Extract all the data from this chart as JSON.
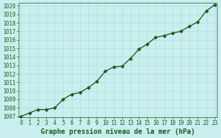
{
  "x": [
    0,
    1,
    2,
    3,
    4,
    5,
    6,
    7,
    8,
    9,
    10,
    11,
    12,
    13,
    14,
    15,
    16,
    17,
    18,
    19,
    20,
    21,
    22,
    23
  ],
  "y": [
    1007.0,
    1007.4,
    1007.8,
    1007.8,
    1008.0,
    1009.0,
    1009.6,
    1009.8,
    1010.4,
    1011.1,
    1012.3,
    1012.8,
    1012.9,
    1013.8,
    1014.9,
    1015.5,
    1016.3,
    1016.5,
    1016.8,
    1017.0,
    1017.6,
    1018.1,
    1019.4,
    1020.1
  ],
  "xlim": [
    0,
    23
  ],
  "ylim": [
    1007,
    1020
  ],
  "xticks": [
    0,
    1,
    2,
    3,
    4,
    5,
    6,
    7,
    8,
    9,
    10,
    11,
    12,
    13,
    14,
    15,
    16,
    17,
    18,
    19,
    20,
    21,
    22,
    23
  ],
  "yticks": [
    1007,
    1008,
    1009,
    1010,
    1011,
    1012,
    1013,
    1014,
    1015,
    1016,
    1017,
    1018,
    1019,
    1020
  ],
  "line_color": "#1a5c1a",
  "marker": "D",
  "marker_size": 2.5,
  "bg_color": "#c8eeee",
  "grid_color": "#aadddd",
  "xlabel": "Graphe pression niveau de la mer (hPa)",
  "xlabel_color": "#1a5c1a",
  "tick_color": "#1a5c1a",
  "tick_fontsize": 5.5,
  "xlabel_fontsize": 7.0,
  "line_width": 1.0
}
